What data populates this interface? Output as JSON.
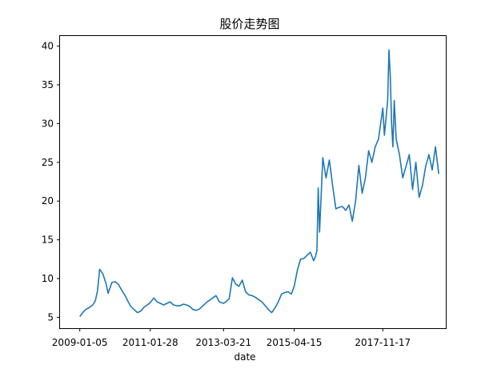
{
  "chart_data": {
    "type": "line",
    "title": "股价走势图",
    "xlabel": "date",
    "ylabel": "",
    "xlim": [
      "2008-06-08",
      "2019-09-21"
    ],
    "ylim": [
      3.6,
      41.3
    ],
    "grid": false,
    "legend": "none",
    "line_color": "#1f77b4",
    "x_ticks": [
      "2009-01-05",
      "2011-01-28",
      "2013-03-21",
      "2015-04-15",
      "2017-11-17"
    ],
    "y_ticks": [
      5,
      10,
      15,
      20,
      25,
      30,
      35,
      40
    ],
    "series": [
      {
        "x": [
          "2009-01-05",
          "2009-02-05",
          "2009-03-09",
          "2009-04-20",
          "2009-05-25",
          "2009-06-22",
          "2009-07-13",
          "2009-08-05",
          "2009-09-09",
          "2009-10-14",
          "2009-11-04",
          "2009-12-14",
          "2010-01-20",
          "2010-02-25",
          "2010-03-29",
          "2010-05-04",
          "2010-06-07",
          "2010-07-05",
          "2010-08-09",
          "2010-09-13",
          "2010-10-18",
          "2010-11-22",
          "2010-12-27",
          "2011-01-28",
          "2011-03-07",
          "2011-04-11",
          "2011-05-16",
          "2011-06-20",
          "2011-07-25",
          "2011-08-29",
          "2011-10-03",
          "2011-11-07",
          "2011-12-12",
          "2012-01-16",
          "2012-02-20",
          "2012-03-26",
          "2012-04-30",
          "2012-06-04",
          "2012-07-09",
          "2012-08-13",
          "2012-09-17",
          "2012-10-22",
          "2012-11-26",
          "2012-12-31",
          "2013-02-04",
          "2013-03-21",
          "2013-04-15",
          "2013-05-20",
          "2013-06-24",
          "2013-07-29",
          "2013-09-02",
          "2013-10-07",
          "2013-11-11",
          "2013-12-16",
          "2014-01-20",
          "2014-02-24",
          "2014-03-31",
          "2014-05-05",
          "2014-06-09",
          "2014-07-14",
          "2014-08-18",
          "2014-09-22",
          "2014-10-27",
          "2014-12-01",
          "2015-01-05",
          "2015-02-09",
          "2015-03-16",
          "2015-04-15",
          "2015-05-18",
          "2015-06-22",
          "2015-07-27",
          "2015-08-31",
          "2015-10-05",
          "2015-11-09",
          "2015-11-30",
          "2015-12-14",
          "2015-12-28",
          "2016-01-11",
          "2016-02-15",
          "2016-03-21",
          "2016-04-25",
          "2016-05-30",
          "2016-07-04",
          "2016-08-08",
          "2016-09-12",
          "2016-10-17",
          "2016-11-21",
          "2016-12-26",
          "2017-01-30",
          "2017-03-06",
          "2017-04-10",
          "2017-05-15",
          "2017-06-19",
          "2017-07-24",
          "2017-08-28",
          "2017-10-02",
          "2017-11-17",
          "2017-12-04",
          "2018-01-08",
          "2018-01-22",
          "2018-02-05",
          "2018-02-19",
          "2018-03-05",
          "2018-03-19",
          "2018-04-09",
          "2018-05-14",
          "2018-06-18",
          "2018-07-23",
          "2018-08-27",
          "2018-10-01",
          "2018-11-05",
          "2018-12-10",
          "2019-01-14",
          "2019-02-18",
          "2019-03-25",
          "2019-04-29",
          "2019-06-03",
          "2019-07-08"
        ],
        "y": [
          5.1,
          5.6,
          6.0,
          6.3,
          6.6,
          7.2,
          8.4,
          11.2,
          10.6,
          9.3,
          8.1,
          9.5,
          9.6,
          9.2,
          8.5,
          7.8,
          7.0,
          6.4,
          6.0,
          5.6,
          5.8,
          6.3,
          6.6,
          6.9,
          7.5,
          7.0,
          6.8,
          6.6,
          6.8,
          7.0,
          6.6,
          6.5,
          6.5,
          6.7,
          6.6,
          6.4,
          6.0,
          5.9,
          6.1,
          6.5,
          6.9,
          7.2,
          7.5,
          7.8,
          7.0,
          6.8,
          7.0,
          7.4,
          10.1,
          9.3,
          9.0,
          9.8,
          8.3,
          7.9,
          7.8,
          7.6,
          7.3,
          7.0,
          6.5,
          6.0,
          5.6,
          6.2,
          7.0,
          8.0,
          8.2,
          8.3,
          8.0,
          9.0,
          11.0,
          12.5,
          12.6,
          13.0,
          13.4,
          12.3,
          12.9,
          13.6,
          21.7,
          16.0,
          25.6,
          23.0,
          25.3,
          22.0,
          19.0,
          19.2,
          19.3,
          18.8,
          19.5,
          17.4,
          20.0,
          24.6,
          21.0,
          23.0,
          26.5,
          25.0,
          27.0,
          28.0,
          32.0,
          28.5,
          33.0,
          39.5,
          36.0,
          30.0,
          27.0,
          33.0,
          28.0,
          26.0,
          23.0,
          24.5,
          26.0,
          21.5,
          25.0,
          20.5,
          22.0,
          24.5,
          26.0,
          24.0,
          27.0,
          23.5
        ]
      }
    ]
  }
}
